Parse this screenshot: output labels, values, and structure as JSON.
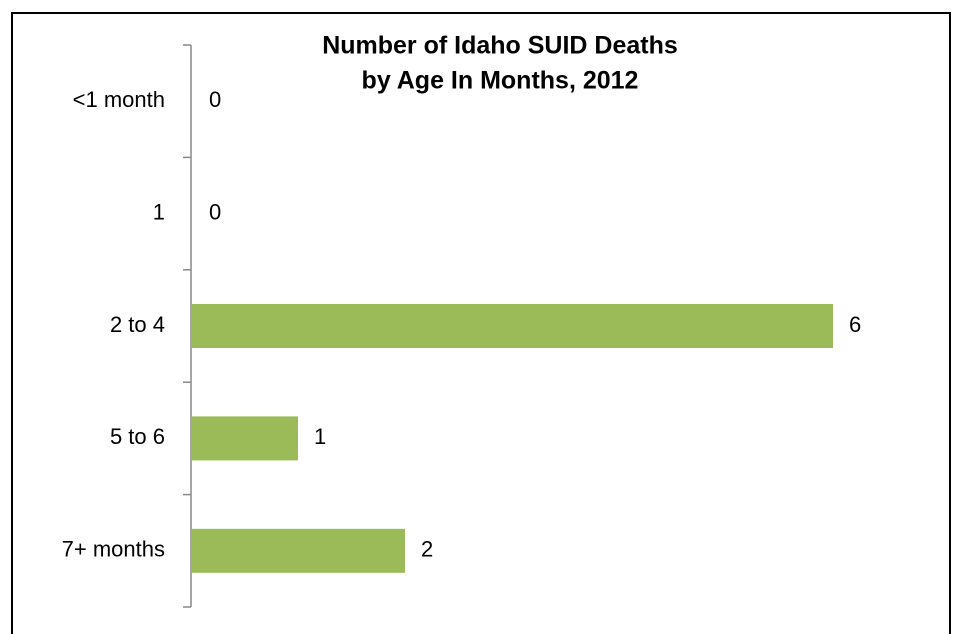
{
  "chart_data": {
    "type": "bar",
    "orientation": "horizontal",
    "title": [
      "Number of Idaho SUID Deaths",
      "by Age In Months, 2012"
    ],
    "categories": [
      "<1 month",
      "1",
      "2 to 4",
      "5 to 6",
      "7+ months"
    ],
    "values": [
      0,
      0,
      6,
      1,
      2
    ],
    "color": "#9bbb59"
  }
}
